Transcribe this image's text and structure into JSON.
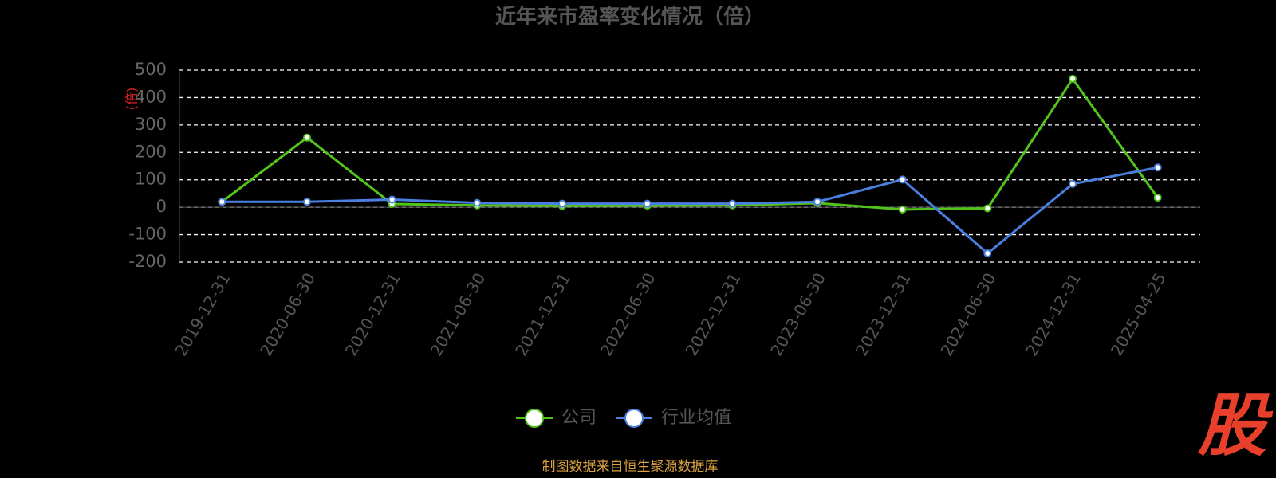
{
  "chart_data": {
    "type": "line",
    "title": "近年来市盈率变化情况（倍）",
    "y_label": "(倍)",
    "categories": [
      "2019-12-31",
      "2020-06-30",
      "2020-12-31",
      "2021-06-30",
      "2021-12-31",
      "2022-06-30",
      "2022-12-31",
      "2023-06-30",
      "2023-12-31",
      "2024-06-30",
      "2024-12-31",
      "2025-04-25"
    ],
    "series": [
      {
        "name": "公司",
        "color": "#52c41a",
        "values": [
          20,
          254,
          12,
          7,
          5,
          6,
          7,
          15,
          -8,
          -4,
          468,
          35
        ]
      },
      {
        "name": "行业均值",
        "color": "#4a7fe0",
        "values": [
          20,
          20,
          28,
          16,
          13,
          13,
          13,
          20,
          101,
          -168,
          85,
          145
        ]
      }
    ],
    "ylim": [
      -200,
      500
    ],
    "yticks": [
      -200,
      -100,
      0,
      100,
      200,
      300,
      400,
      500
    ],
    "grid": true,
    "source": "制图数据来自恒生聚源数据库",
    "logo": "股"
  }
}
